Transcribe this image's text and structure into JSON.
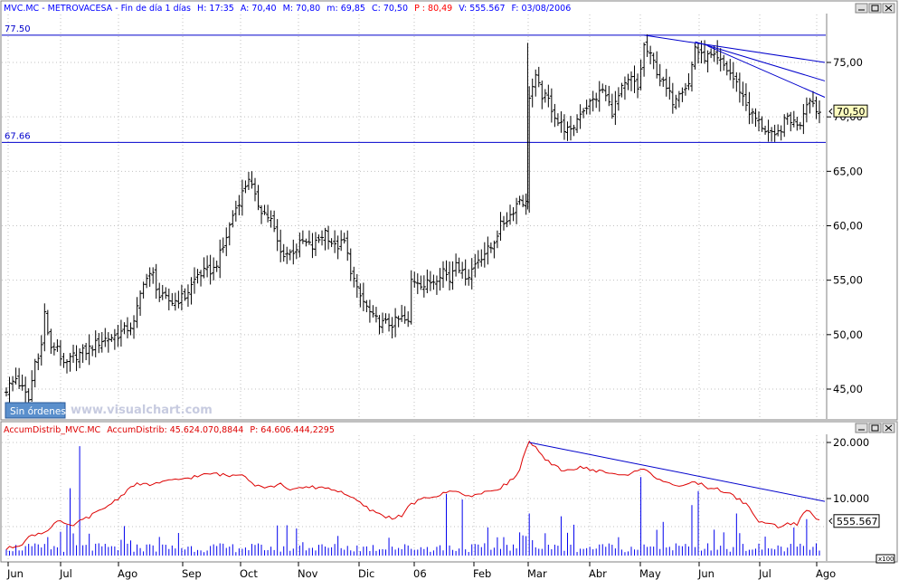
{
  "header": {
    "info": {
      "ticker": "MVC.MC",
      "name": "METROVACESA",
      "period": "Fin de día 1 días",
      "H": "H: 17:35",
      "A": "A: 70,40",
      "M": "M: 70,80",
      "m": "m: 69,85",
      "C": "C: 70,50",
      "P": "P : 80,49",
      "V": "V: 555.567",
      "F": "F: 03/08/2006"
    },
    "text_color": "#0000ff",
    "p_color": "#ff0000"
  },
  "lower_header": {
    "indicator": "AccumDistrib_MVC.MC",
    "name2": "AccumDistrib",
    "value": "45.624.070,8844",
    "p": "P: 64.606.444,2295"
  },
  "controls": {
    "sin_ordenes": "Sin órdenes",
    "watermark": "www.visualchart.com",
    "x100": "x100"
  },
  "colors": {
    "price_bars": "#000000",
    "trendlines": "#0000cc",
    "ad_line": "#dd0000",
    "volume": "#0000ee",
    "last_bg": "#ffffc0"
  },
  "chart_data": [
    {
      "type": "ohlc",
      "title": "MVC.MC - METROVACESA",
      "ylim": [
        42.0,
        79.5
      ],
      "yticks": [
        "75,00",
        "70,00",
        "65,00",
        "60,00",
        "55,00",
        "50,00",
        "45,00"
      ],
      "ytick_values": [
        75,
        70,
        65,
        60,
        55,
        50,
        45
      ],
      "x_months": [
        "Jun",
        "Jul",
        "Ago",
        "Sep",
        "Oct",
        "Nov",
        "Dic",
        "06",
        "Feb",
        "Mar",
        "Abr",
        "May",
        "Jun",
        "Jul",
        "Ago"
      ],
      "anchors": [
        [
          0,
          45.0
        ],
        [
          3,
          46.0
        ],
        [
          5,
          45.0
        ],
        [
          7,
          44.0
        ],
        [
          9,
          47.5
        ],
        [
          11,
          49.0
        ],
        [
          12,
          52.0
        ],
        [
          14,
          48.5
        ],
        [
          16,
          49.0
        ],
        [
          18,
          47.0
        ],
        [
          21,
          48.0
        ],
        [
          25,
          48.5
        ],
        [
          30,
          49.5
        ],
        [
          35,
          50.0
        ],
        [
          40,
          51.0
        ],
        [
          43,
          55.0
        ],
        [
          46,
          55.5
        ],
        [
          48,
          53.5
        ],
        [
          52,
          53.0
        ],
        [
          56,
          53.5
        ],
        [
          60,
          55.5
        ],
        [
          65,
          56.0
        ],
        [
          68,
          58.0
        ],
        [
          71,
          61.0
        ],
        [
          74,
          63.0
        ],
        [
          76,
          64.5
        ],
        [
          78,
          62.5
        ],
        [
          80,
          61.5
        ],
        [
          83,
          60.5
        ],
        [
          86,
          57.5
        ],
        [
          89,
          57.5
        ],
        [
          93,
          58.5
        ],
        [
          96,
          58.0
        ],
        [
          100,
          59.5
        ],
        [
          103,
          58.0
        ],
        [
          106,
          58.5
        ],
        [
          108,
          56.0
        ],
        [
          110,
          54.0
        ],
        [
          112,
          53.0
        ],
        [
          115,
          51.5
        ],
        [
          118,
          51.0
        ],
        [
          121,
          51.0
        ],
        [
          124,
          51.5
        ],
        [
          126,
          51.0
        ],
        [
          127,
          55.0
        ],
        [
          129,
          55.0
        ],
        [
          131,
          54.5
        ],
        [
          134,
          55.0
        ],
        [
          137,
          56.0
        ],
        [
          139,
          55.0
        ],
        [
          141,
          57.0
        ],
        [
          143,
          55.5
        ],
        [
          145,
          55.5
        ],
        [
          148,
          57.0
        ],
        [
          152,
          58.0
        ],
        [
          155,
          60.0
        ],
        [
          158,
          61.0
        ],
        [
          161,
          62.5
        ],
        [
          163,
          62.0
        ],
        [
          164,
          72.0
        ],
        [
          166,
          73.5
        ],
        [
          168,
          72.0
        ],
        [
          170,
          71.5
        ],
        [
          173,
          69.5
        ],
        [
          175,
          69.0
        ],
        [
          177,
          68.5
        ],
        [
          180,
          70.5
        ],
        [
          184,
          71.5
        ],
        [
          187,
          72.5
        ],
        [
          190,
          70.5
        ],
        [
          193,
          72.5
        ],
        [
          196,
          73.5
        ],
        [
          198,
          72.5
        ],
        [
          200,
          76.5
        ],
        [
          203,
          75.0
        ],
        [
          205,
          73.5
        ],
        [
          207,
          72.5
        ],
        [
          209,
          71.5
        ],
        [
          211,
          72.5
        ],
        [
          214,
          73.0
        ],
        [
          216,
          76.5
        ],
        [
          218,
          75.5
        ],
        [
          221,
          75.5
        ],
        [
          224,
          75.0
        ],
        [
          227,
          74.0
        ],
        [
          230,
          72.5
        ],
        [
          233,
          70.5
        ],
        [
          236,
          69.5
        ],
        [
          239,
          68.5
        ],
        [
          241,
          68.0
        ],
        [
          243,
          69.0
        ],
        [
          245,
          70.0
        ],
        [
          247,
          69.5
        ],
        [
          249,
          69.5
        ],
        [
          251,
          71.5
        ],
        [
          253,
          71.5
        ],
        [
          254,
          70.5
        ]
      ],
      "reference_lines": [
        {
          "label": "77.50",
          "value": 77.5
        },
        {
          "label": "67.66",
          "value": 67.66
        }
      ],
      "trendlines": [
        {
          "from": [
            200,
            77.5
          ],
          "to": [
            255,
            75.0
          ]
        },
        {
          "from": [
            216,
            76.9
          ],
          "to": [
            255,
            73.3
          ]
        },
        {
          "from": [
            220,
            76.5
          ],
          "to": [
            255,
            71.8
          ]
        }
      ],
      "last_value_label": "70,50",
      "last_value": 70.5
    },
    {
      "type": "line+bar",
      "title": "AccumDistrib_MVC.MC",
      "ylim": [
        0,
        21.5
      ],
      "yticks": [
        "20.000",
        "10.000"
      ],
      "ytick_values": [
        20,
        10
      ],
      "ad_anchors": [
        [
          0,
          1.0
        ],
        [
          5,
          2.0
        ],
        [
          8,
          3.5
        ],
        [
          12,
          4.0
        ],
        [
          16,
          6.0
        ],
        [
          20,
          5.0
        ],
        [
          25,
          6.5
        ],
        [
          30,
          8.0
        ],
        [
          35,
          10.0
        ],
        [
          40,
          12.5
        ],
        [
          45,
          12.5
        ],
        [
          50,
          13.0
        ],
        [
          55,
          13.5
        ],
        [
          60,
          14.0
        ],
        [
          65,
          14.5
        ],
        [
          70,
          14.0
        ],
        [
          74,
          14.5
        ],
        [
          78,
          12.5
        ],
        [
          82,
          12.0
        ],
        [
          86,
          12.5
        ],
        [
          90,
          11.5
        ],
        [
          94,
          12.0
        ],
        [
          100,
          12.0
        ],
        [
          106,
          11.0
        ],
        [
          110,
          9.5
        ],
        [
          114,
          8.0
        ],
        [
          118,
          7.0
        ],
        [
          121,
          6.5
        ],
        [
          124,
          7.0
        ],
        [
          127,
          9.0
        ],
        [
          131,
          10.0
        ],
        [
          135,
          10.5
        ],
        [
          138,
          11.0
        ],
        [
          140,
          11.5
        ],
        [
          142,
          11.0
        ],
        [
          146,
          10.5
        ],
        [
          150,
          11.0
        ],
        [
          155,
          12.0
        ],
        [
          159,
          13.5
        ],
        [
          161,
          15.0
        ],
        [
          162,
          17.5
        ],
        [
          164,
          20.0
        ],
        [
          166,
          19.0
        ],
        [
          168,
          17.5
        ],
        [
          171,
          16.0
        ],
        [
          175,
          15.0
        ],
        [
          180,
          15.5
        ],
        [
          185,
          15.0
        ],
        [
          190,
          14.5
        ],
        [
          195,
          14.0
        ],
        [
          199,
          15.5
        ],
        [
          203,
          14.0
        ],
        [
          207,
          13.0
        ],
        [
          212,
          12.0
        ],
        [
          216,
          13.0
        ],
        [
          220,
          12.0
        ],
        [
          224,
          11.5
        ],
        [
          228,
          10.5
        ],
        [
          232,
          9.0
        ],
        [
          236,
          6.0
        ],
        [
          239,
          5.5
        ],
        [
          242,
          5.0
        ],
        [
          245,
          5.5
        ],
        [
          248,
          5.5
        ],
        [
          251,
          8.0
        ],
        [
          253,
          7.0
        ],
        [
          255,
          6.0
        ]
      ],
      "volume_spikes": [
        [
          23,
          19.5
        ],
        [
          20,
          12.0
        ],
        [
          138,
          11.0
        ],
        [
          143,
          10.0
        ],
        [
          164,
          7.5
        ],
        [
          174,
          7.0
        ],
        [
          178,
          5.5
        ],
        [
          199,
          14.0
        ],
        [
          206,
          6.0
        ],
        [
          215,
          9.0
        ],
        [
          217,
          11.5
        ],
        [
          229,
          7.5
        ],
        [
          247,
          5.0
        ],
        [
          251,
          6.5
        ]
      ],
      "trendline": {
        "from": [
          164,
          20.0
        ],
        "to": [
          255,
          9.5
        ]
      },
      "last_value_label": "555.567",
      "last_value": 6.0
    }
  ]
}
